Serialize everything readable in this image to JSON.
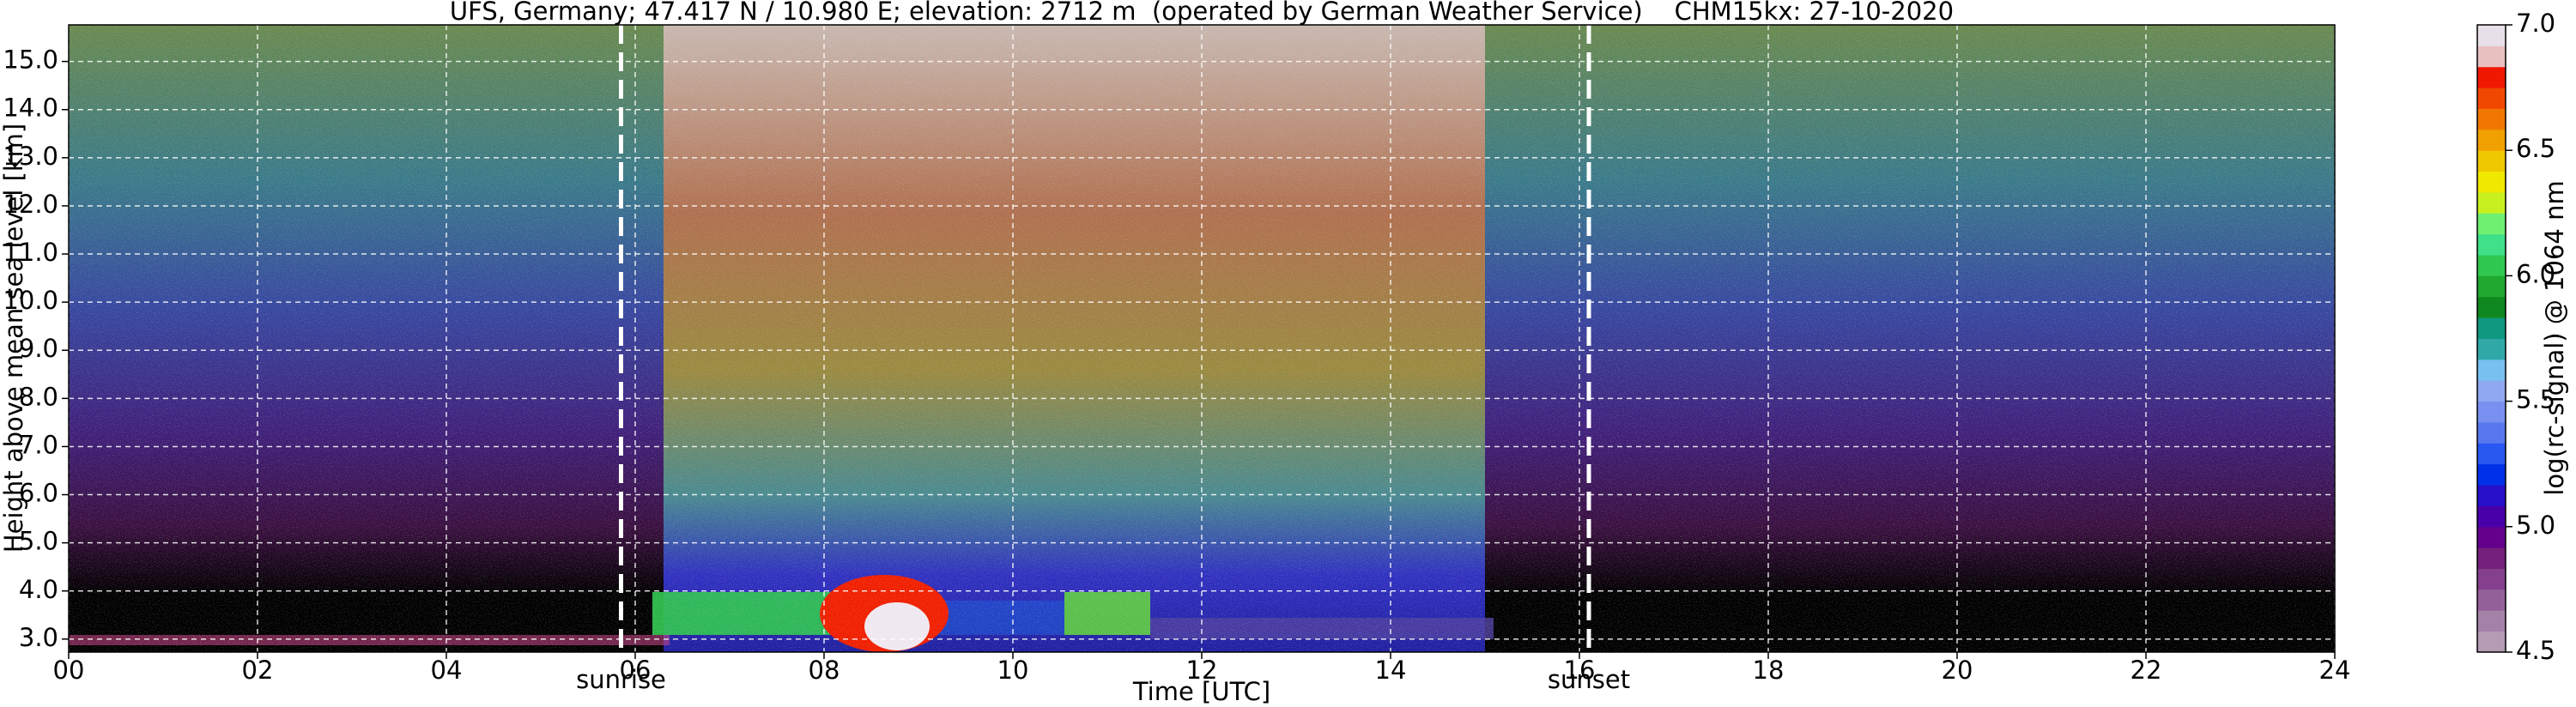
{
  "chart_data": {
    "type": "heatmap",
    "title": "UFS, Germany; 47.417 N / 10.980 E; elevation: 2712 m  (operated by German Weather Service)    CHM15kx: 27-10-2020",
    "x_label": "Time [UTC]",
    "y_label": "Height above mean sea level [km]",
    "xlim": [
      0,
      24
    ],
    "xticks": [
      {
        "value": 0,
        "label": "00"
      },
      {
        "value": 2,
        "label": "02"
      },
      {
        "value": 4,
        "label": "04"
      },
      {
        "value": 6,
        "label": "06"
      },
      {
        "value": 8,
        "label": "08"
      },
      {
        "value": 10,
        "label": "10"
      },
      {
        "value": 12,
        "label": "12"
      },
      {
        "value": 14,
        "label": "14"
      },
      {
        "value": 16,
        "label": "16"
      },
      {
        "value": 18,
        "label": "18"
      },
      {
        "value": 20,
        "label": "20"
      },
      {
        "value": 22,
        "label": "22"
      },
      {
        "value": 24,
        "label": "24"
      }
    ],
    "ylim": [
      2.73,
      15.76
    ],
    "yticks": [
      {
        "value": 3,
        "label": "3.0"
      },
      {
        "value": 4,
        "label": "4.0"
      },
      {
        "value": 5,
        "label": "5.0"
      },
      {
        "value": 6,
        "label": "6.0"
      },
      {
        "value": 7,
        "label": "7.0"
      },
      {
        "value": 8,
        "label": "8.0"
      },
      {
        "value": 9,
        "label": "9.0"
      },
      {
        "value": 10,
        "label": "10.0"
      },
      {
        "value": 11,
        "label": "11.0"
      },
      {
        "value": 12,
        "label": "12.0"
      },
      {
        "value": 13,
        "label": "13.0"
      },
      {
        "value": 14,
        "label": "14.0"
      },
      {
        "value": 15,
        "label": "15.0"
      }
    ],
    "grid": true,
    "annotations": [
      {
        "label": "sunrise",
        "x": 5.85
      },
      {
        "label": "sunset",
        "x": 16.1
      }
    ],
    "colorbar": {
      "label": "log(rc-signal) @ 1064 nm",
      "lim": [
        4.5,
        7.0
      ],
      "ticks": [
        4.5,
        {
          "value": 5,
          "label": "5.0"
        },
        5.5,
        {
          "value": 6,
          "label": "6.0"
        },
        6.5,
        {
          "value": 7,
          "label": "7.0"
        }
      ],
      "colors": [
        "#b49cb4",
        "#a482a8",
        "#94609a",
        "#84408c",
        "#74207c",
        "#64008c",
        "#4800a8",
        "#2810c8",
        "#0030e8",
        "#2858f0",
        "#5878f0",
        "#7890f0",
        "#90a8f0",
        "#78c0f0",
        "#30a8a8",
        "#109880",
        "#108820",
        "#20a830",
        "#30c850",
        "#40e088",
        "#70f070",
        "#c8f020",
        "#f0e800",
        "#f0c800",
        "#f0a000",
        "#f07800",
        "#f04800",
        "#f01800",
        "#e8c0c0",
        "#e8e0e8"
      ]
    }
  }
}
